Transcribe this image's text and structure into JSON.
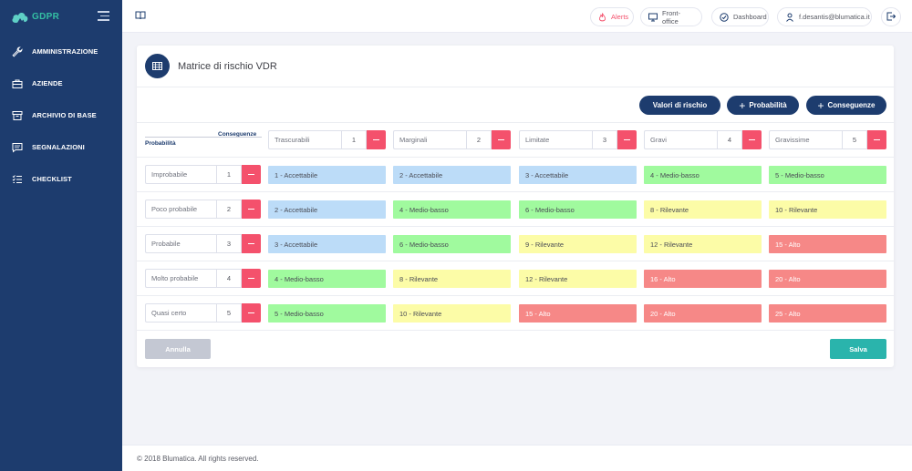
{
  "brand": {
    "name": "GDPR"
  },
  "sidebar": {
    "items": [
      {
        "label": "AMMINISTRAZIONE",
        "icon": "wrench-icon"
      },
      {
        "label": "AZIENDE",
        "icon": "briefcase-icon"
      },
      {
        "label": "ARCHIVIO DI BASE",
        "icon": "archive-icon"
      },
      {
        "label": "SEGNALAZIONI",
        "icon": "message-icon"
      },
      {
        "label": "CHECKLIST",
        "icon": "checklist-icon"
      }
    ]
  },
  "topbar": {
    "alerts": "Alerts",
    "frontoffice": "Front-office",
    "dashboard": "Dashboard",
    "user": "f.desantis@blumatica.it",
    "colors": {
      "alerts": "#f4516c"
    }
  },
  "card": {
    "title": "Matrice di rischio VDR"
  },
  "actions": {
    "valori": "Valori di rischio",
    "probabilita": "Probabilità",
    "conseguenze": "Conseguenze"
  },
  "matrix": {
    "corner_conseguenze": "Conseguenze",
    "corner_probabilita": "Probabilità",
    "columns": [
      {
        "name": "Trascurabili",
        "value": "1"
      },
      {
        "name": "Marginali",
        "value": "2"
      },
      {
        "name": "Limitate",
        "value": "3"
      },
      {
        "name": "Gravi",
        "value": "4"
      },
      {
        "name": "Gravissime",
        "value": "5"
      }
    ],
    "rows": [
      {
        "name": "Improbabile",
        "value": "1",
        "cells": [
          {
            "text": "1 - Accettabile",
            "level": "accettabile"
          },
          {
            "text": "2 - Accettabile",
            "level": "accettabile"
          },
          {
            "text": "3 - Accettabile",
            "level": "accettabile"
          },
          {
            "text": "4 - Medio-basso",
            "level": "medio"
          },
          {
            "text": "5 - Medio-basso",
            "level": "medio"
          }
        ]
      },
      {
        "name": "Poco probabile",
        "value": "2",
        "cells": [
          {
            "text": "2 - Accettabile",
            "level": "accettabile"
          },
          {
            "text": "4 - Medio-basso",
            "level": "medio"
          },
          {
            "text": "6 - Medio-basso",
            "level": "medio"
          },
          {
            "text": "8 - Rilevante",
            "level": "rilevante"
          },
          {
            "text": "10 - Rilevante",
            "level": "rilevante"
          }
        ]
      },
      {
        "name": "Probabile",
        "value": "3",
        "cells": [
          {
            "text": "3 - Accettabile",
            "level": "accettabile"
          },
          {
            "text": "6 - Medio-basso",
            "level": "medio"
          },
          {
            "text": "9 - Rilevante",
            "level": "rilevante"
          },
          {
            "text": "12 - Rilevante",
            "level": "rilevante"
          },
          {
            "text": "15 - Alto",
            "level": "alto"
          }
        ]
      },
      {
        "name": "Molto probabile",
        "value": "4",
        "cells": [
          {
            "text": "4 - Medio-basso",
            "level": "medio"
          },
          {
            "text": "8 - Rilevante",
            "level": "rilevante"
          },
          {
            "text": "12 - Rilevante",
            "level": "rilevante"
          },
          {
            "text": "16 - Alto",
            "level": "alto"
          },
          {
            "text": "20 - Alto",
            "level": "alto"
          }
        ]
      },
      {
        "name": "Quasi certo",
        "value": "5",
        "cells": [
          {
            "text": "5 - Medio-basso",
            "level": "medio"
          },
          {
            "text": "10 - Rilevante",
            "level": "rilevante"
          },
          {
            "text": "15 - Alto",
            "level": "alto"
          },
          {
            "text": "20 - Alto",
            "level": "alto"
          },
          {
            "text": "25 - Alto",
            "level": "alto"
          }
        ]
      }
    ]
  },
  "form": {
    "annulla": "Annulla",
    "salva": "Salva"
  },
  "footer": {
    "text": "© 2018 Blumatica. All rights reserved."
  },
  "colors": {
    "sidebar": "#1d3c6e",
    "accent": "#34bfa3",
    "danger": "#f4516c",
    "accettabile": "#bcdcf8",
    "medio": "#a0fa9e",
    "rilevante": "#fcfca7",
    "alto": "#f68887",
    "salva": "#2ab4ac"
  }
}
